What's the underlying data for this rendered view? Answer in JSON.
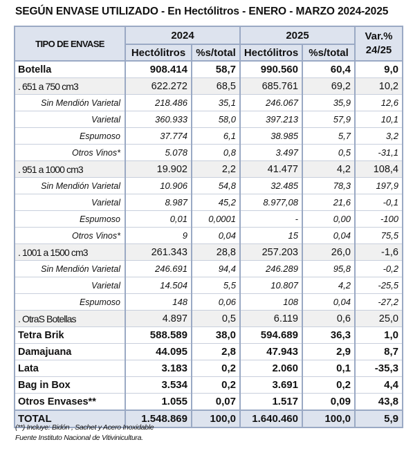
{
  "title": "SEGÚN ENVASE UTILIZADO - En Hectólitros - ENERO - MARZO 2024-2025",
  "header": {
    "type_label": "TIPO DE ENVASE",
    "year1": "2024",
    "year2": "2025",
    "var_line1": "Var.%",
    "var_line2": "24/25",
    "col_hl": "Hectólitros",
    "col_pct": "%s/total"
  },
  "rows": [
    {
      "style": "main",
      "label": "Botella",
      "hl24": "908.414",
      "p24": "58,7",
      "hl25": "990.560",
      "p25": "60,4",
      "var": "9,0"
    },
    {
      "style": "sub",
      "label": ". 651 a 750 cm3",
      "hl24": "622.272",
      "p24": "68,5",
      "hl25": "685.761",
      "p25": "69,2",
      "var": "10,2"
    },
    {
      "style": "detail",
      "label": "Sin Mendión Varietal",
      "hl24": "218.486",
      "p24": "35,1",
      "hl25": "246.067",
      "p25": "35,9",
      "var": "12,6"
    },
    {
      "style": "detail",
      "label": "Varietal",
      "hl24": "360.933",
      "p24": "58,0",
      "hl25": "397.213",
      "p25": "57,9",
      "var": "10,1"
    },
    {
      "style": "detail",
      "label": "Espumoso",
      "hl24": "37.774",
      "p24": "6,1",
      "hl25": "38.985",
      "p25": "5,7",
      "var": "3,2"
    },
    {
      "style": "detail",
      "label": "Otros Vinos*",
      "hl24": "5.078",
      "p24": "0,8",
      "hl25": "3.497",
      "p25": "0,5",
      "var": "-31,1"
    },
    {
      "style": "sub",
      "label": ". 951 a 1000 cm3",
      "hl24": "19.902",
      "p24": "2,2",
      "hl25": "41.477",
      "p25": "4,2",
      "var": "108,4"
    },
    {
      "style": "detail",
      "label": "Sin Mendión Varietal",
      "hl24": "10.906",
      "p24": "54,8",
      "hl25": "32.485",
      "p25": "78,3",
      "var": "197,9"
    },
    {
      "style": "detail",
      "label": "Varietal",
      "hl24": "8.987",
      "p24": "45,2",
      "hl25": "8.977,08",
      "p25": "21,6",
      "var": "-0,1"
    },
    {
      "style": "detail",
      "label": "Espumoso",
      "hl24": "0,01",
      "p24": "0,0001",
      "hl25": "-",
      "p25": "0,00",
      "var": "-100"
    },
    {
      "style": "detail",
      "label": "Otros Vinos*",
      "hl24": "9",
      "p24": "0,04",
      "hl25": "15",
      "p25": "0,04",
      "var": "75,5"
    },
    {
      "style": "sub",
      "label": ". 1001 a 1500 cm3",
      "hl24": "261.343",
      "p24": "28,8",
      "hl25": "257.203",
      "p25": "26,0",
      "var": "-1,6"
    },
    {
      "style": "detail",
      "label": "Sin Mendión Varietal",
      "hl24": "246.691",
      "p24": "94,4",
      "hl25": "246.289",
      "p25": "95,8",
      "var": "-0,2"
    },
    {
      "style": "detail",
      "label": "Varietal",
      "hl24": "14.504",
      "p24": "5,5",
      "hl25": "10.807",
      "p25": "4,2",
      "var": "-25,5"
    },
    {
      "style": "detail",
      "label": "Espumoso",
      "hl24": "148",
      "p24": "0,06",
      "hl25": "108",
      "p25": "0,04",
      "var": "-27,2"
    },
    {
      "style": "sub",
      "label": ". OtraS Botellas",
      "hl24": "4.897",
      "p24": "0,5",
      "hl25": "6.119",
      "p25": "0,6",
      "var": "25,0"
    },
    {
      "style": "main",
      "label": "Tetra Brik",
      "hl24": "588.589",
      "p24": "38,0",
      "hl25": "594.689",
      "p25": "36,3",
      "var": "1,0"
    },
    {
      "style": "main",
      "label": "Damajuana",
      "hl24": "44.095",
      "p24": "2,8",
      "hl25": "47.943",
      "p25": "2,9",
      "var": "8,7"
    },
    {
      "style": "main",
      "label": "Lata",
      "hl24": "3.183",
      "p24": "0,2",
      "hl25": "2.060",
      "p25": "0,1",
      "var": "-35,3"
    },
    {
      "style": "main",
      "label": "Bag in Box",
      "hl24": "3.534",
      "p24": "0,2",
      "hl25": "3.691",
      "p25": "0,2",
      "var": "4,4"
    },
    {
      "style": "main",
      "label": "Otros Envases**",
      "hl24": "1.055",
      "p24": "0,07",
      "hl25": "1.517",
      "p25": "0,09",
      "var": "43,8"
    }
  ],
  "total": {
    "label": "TOTAL",
    "hl24": "1.548.869",
    "p24": "100,0",
    "hl25": "1.640.460",
    "p25": "100,0",
    "var": "5,9"
  },
  "footnotes": {
    "note1": "(**) Incluye: Bidón , Sachet y Acero Inoxidable",
    "note2": "Fuente Instituto Nacional de Vitivinicultura."
  }
}
